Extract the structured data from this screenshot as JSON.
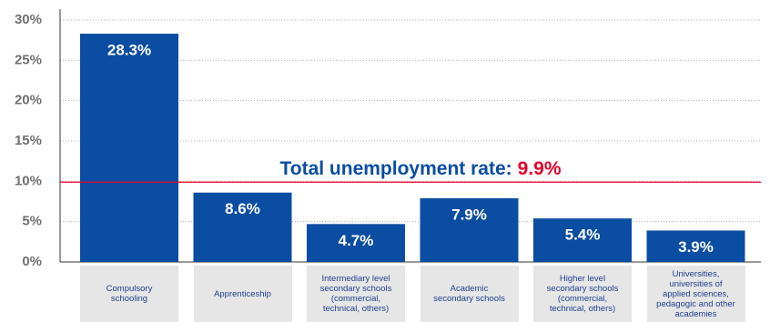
{
  "chart_data": {
    "type": "bar",
    "categories": [
      "Compulsory schooling",
      "Apprenticeship",
      "Intermediary level secondary schools (commercial, technical, others)",
      "Academic secondary schools",
      "Higher level secondary schools (commercial, technical, others)",
      "Universities, universities of applied sciences, pedagogic and other academies"
    ],
    "values": [
      28.3,
      8.6,
      4.7,
      7.9,
      5.4,
      3.9
    ],
    "value_labels": [
      "28.3%",
      "8.6%",
      "4.7%",
      "7.9%",
      "5.4%",
      "3.9%"
    ],
    "color": "#0a4da2",
    "ylim": [
      0,
      30
    ],
    "yticks": [
      {
        "value": 0,
        "label": "0%"
      },
      {
        "value": 5,
        "label": "5%"
      },
      {
        "value": 10,
        "label": "10%"
      },
      {
        "value": 15,
        "label": "15%"
      },
      {
        "value": 20,
        "label": "20%"
      },
      {
        "value": 25,
        "label": "25%"
      },
      {
        "value": 30,
        "label": "30%"
      }
    ],
    "grid": true,
    "reference_line": {
      "value": 9.9,
      "label": "Total unemployment rate:",
      "value_label": "9.9%",
      "color": "#e4002b"
    }
  }
}
